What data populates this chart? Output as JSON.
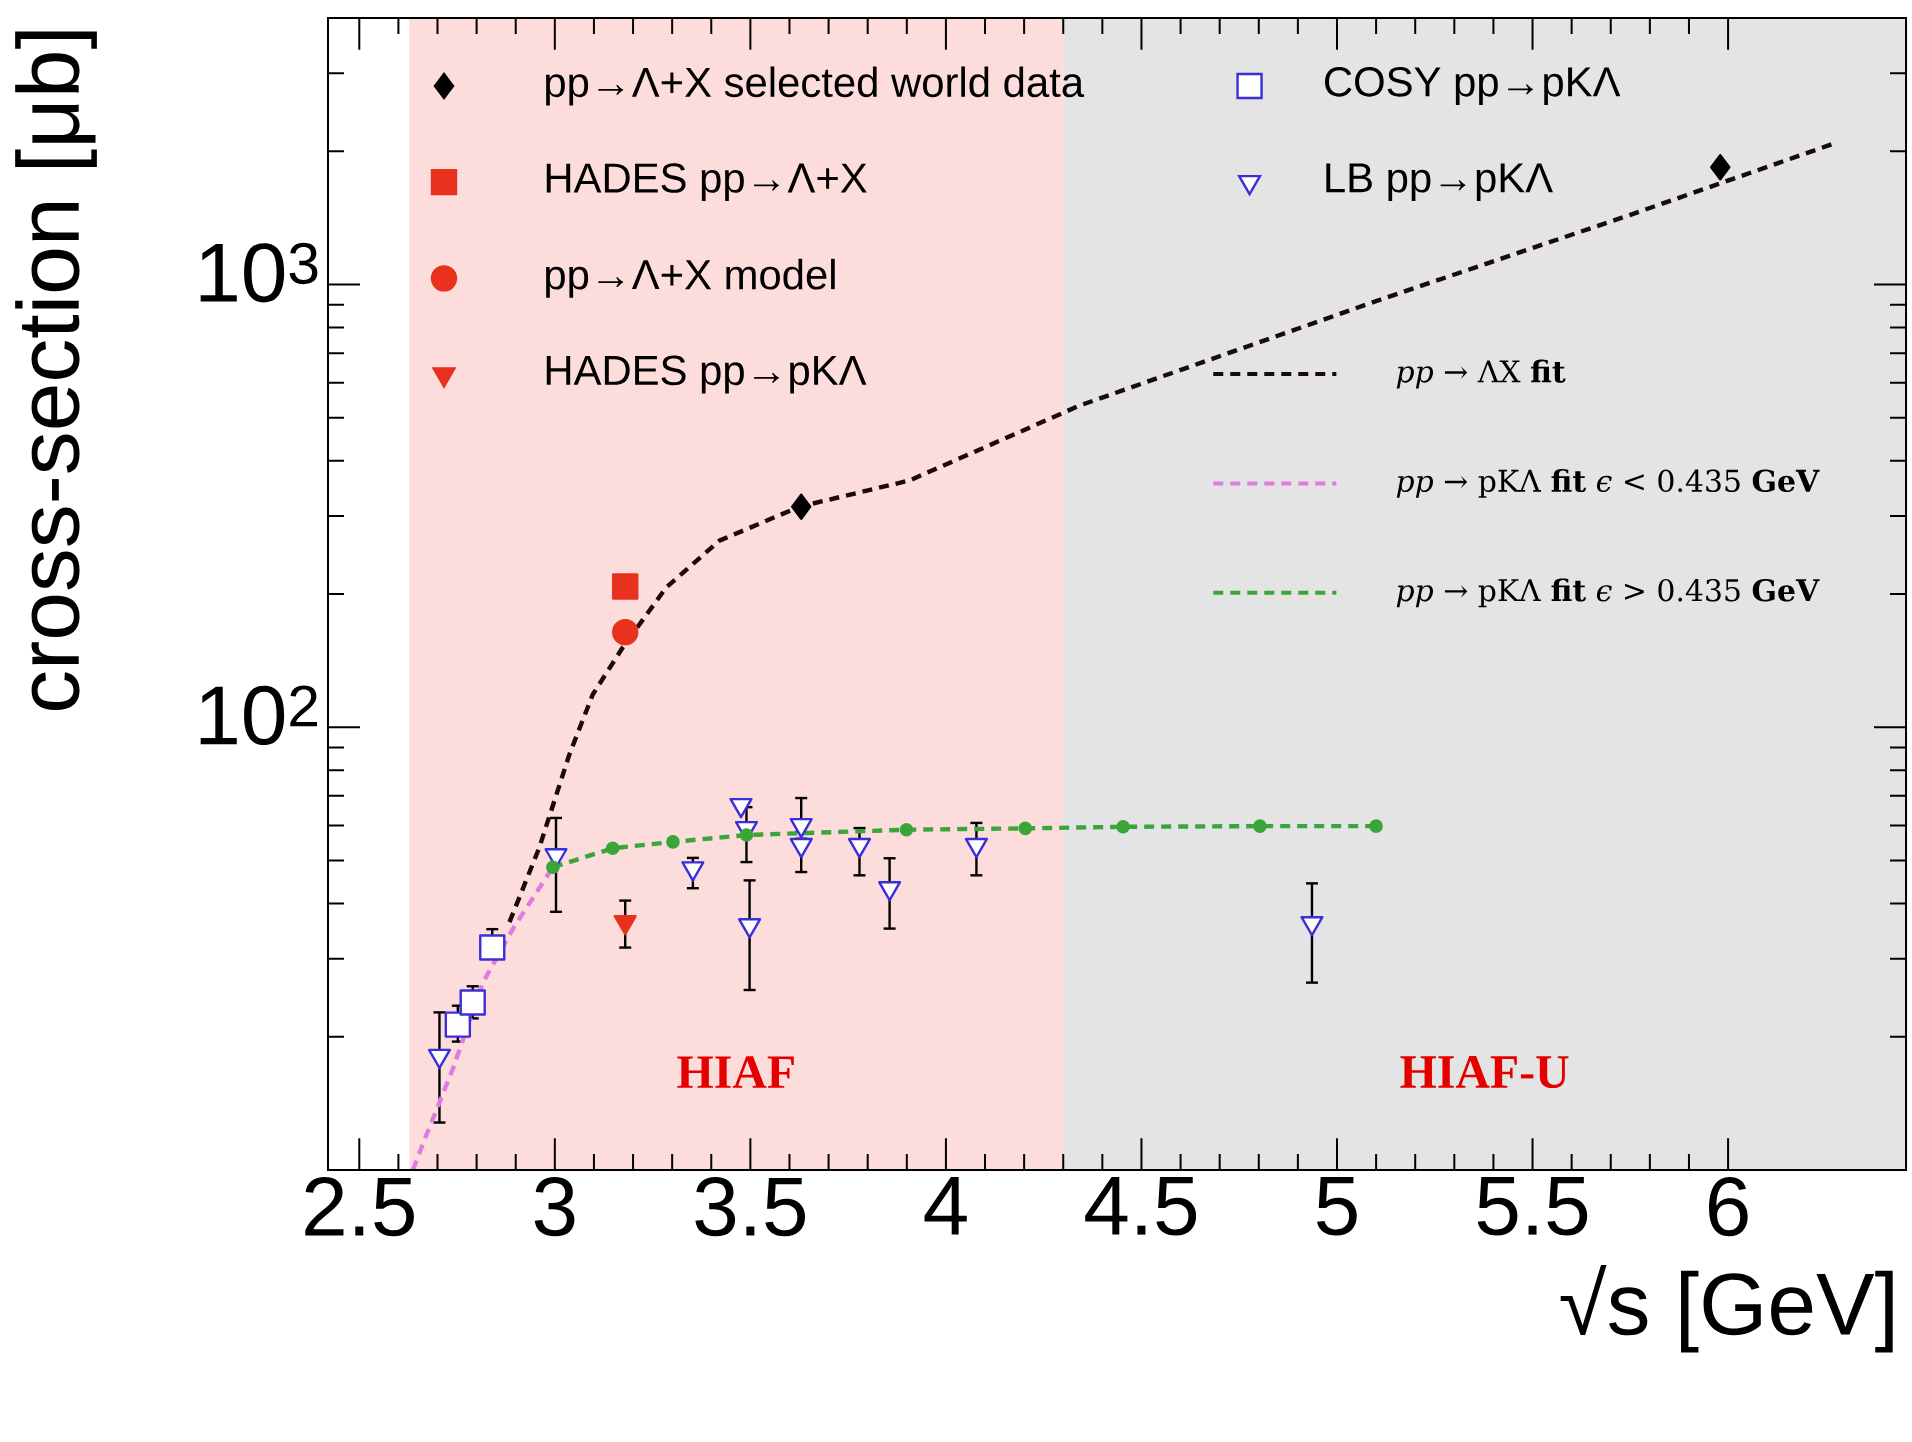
{
  "chart_data": {
    "type": "scatter",
    "xlabel": "√s [GeV]",
    "ylabel": "cross-section [μb]",
    "xlim": [
      2.42,
      6.455
    ],
    "ylim": [
      10,
      4000
    ],
    "log": "y",
    "xticks": [
      2.5,
      3,
      3.5,
      4,
      4.5,
      5,
      5.5,
      6
    ],
    "yticks": [
      {
        "value": 100,
        "label": "10$^{2}$"
      },
      {
        "value": 1000,
        "label": "10$^{3}$"
      }
    ],
    "grid": false,
    "legend": "top",
    "bands": [
      {
        "axis": "x",
        "from": 2.628,
        "to": 4.3,
        "label": "HIAF",
        "color": "#fddcdc"
      },
      {
        "axis": "x",
        "from": 4.3,
        "to": 6.455,
        "label": "HIAF-U",
        "color": "#e4e4e4"
      }
    ],
    "series": [
      {
        "name": "pp→Λ+X selected world data",
        "marker": "diamond",
        "color": "#000000",
        "x": [
          3.63,
          5.98
        ],
        "values": [
          315,
          1840
        ]
      },
      {
        "name": "HADES pp→Λ+X",
        "marker": "square",
        "color": "#e8321e",
        "x": [
          3.18
        ],
        "values": [
          208
        ]
      },
      {
        "name": "pp→Λ+X model",
        "marker": "circle",
        "color": "#e8321e",
        "x": [
          3.18
        ],
        "values": [
          164
        ]
      },
      {
        "name": "HADES pp→pKΛ",
        "marker": "triangle",
        "color": "#e8321e",
        "x": [
          3.18
        ],
        "values": [
          36.3
        ],
        "errors": [
          [
            31.8,
            40.6
          ]
        ]
      },
      {
        "name": "COSY pp→pKΛ",
        "marker": "square",
        "color": "#3a2fd8",
        "x": [
          2.752,
          2.79,
          2.84
        ],
        "values": [
          21.3,
          23.9,
          31.8
        ],
        "errors": [
          [
            19.5,
            23.5
          ],
          [
            22,
            26
          ],
          [
            30,
            35
          ]
        ]
      },
      {
        "name": "LB pp→pKΛ",
        "marker": "triangle",
        "color": "#3a2fd8",
        "x": [
          2.705,
          3.003,
          3.353,
          3.476,
          3.49,
          3.498,
          3.63,
          3.63,
          3.779,
          3.856,
          4.078,
          4.936
        ],
        "values": [
          18.1,
          51.4,
          48.0,
          66.7,
          59.2,
          35.7,
          60.1,
          54.2,
          54.2,
          43.3,
          54.2,
          36.1
        ],
        "errors": [
          [
            12.8,
            22.7
          ],
          [
            38.3,
            62.4
          ],
          [
            43.3,
            50.7
          ],
          null,
          [
            49.6,
            66
          ],
          [
            25.5,
            45.1
          ],
          [
            58,
            69.2
          ],
          [
            47.1,
            56
          ],
          [
            46.3,
            59.2
          ],
          [
            35.1,
            50.6
          ],
          [
            46.3,
            60.8
          ],
          [
            26.5,
            44.4
          ]
        ]
      },
      {
        "name": "*pp* → ΛX  **fit**",
        "type": "line",
        "line_style": "dashed",
        "marker": "none",
        "color": "#1a0a0a",
        "x": [
          2.884,
          2.96,
          3.037,
          3.097,
          3.174,
          3.285,
          3.421,
          3.626,
          3.907,
          4.342,
          5.11,
          5.75,
          6.274
        ],
        "values": [
          36.3,
          53.4,
          86.7,
          118.6,
          151.6,
          207,
          264,
          315,
          361,
          533,
          924,
          1437,
          2087
        ]
      },
      {
        "name": "*pp* → pKΛ  **fit**  *ϵ* < 0.435 **GeV**",
        "type": "line",
        "line_style": "dashed",
        "marker": "none",
        "color": "#e07be0",
        "x": [
          2.637,
          2.67,
          2.739,
          2.816,
          2.893,
          2.995
        ],
        "values": [
          10,
          11.9,
          16.9,
          26.5,
          35.1,
          48.3
        ]
      },
      {
        "name": "*pp* → pKΛ  **fit**  *ϵ* > 0.435 **GeV**",
        "type": "line",
        "line_style": "dashed",
        "marker": "circle",
        "color": "#3aa63a",
        "x": [
          2.995,
          3.148,
          3.302,
          3.49,
          3.899,
          4.203,
          4.453,
          4.803,
          5.1
        ],
        "values": [
          48.3,
          53.3,
          55.1,
          57.1,
          58.7,
          59.1,
          59.6,
          59.8,
          59.8
        ]
      }
    ]
  }
}
